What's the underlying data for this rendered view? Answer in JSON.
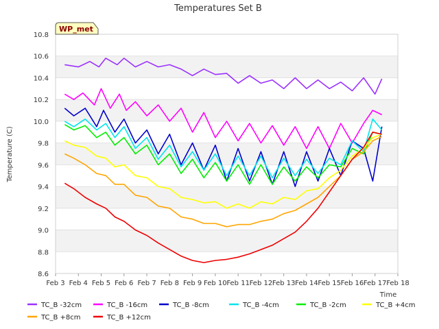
{
  "chart_data": {
    "type": "line",
    "title": "Temperatures Set B",
    "xlabel": "Time",
    "ylabel": "Temperature (C)",
    "xlim": [
      3,
      18
    ],
    "ylim": [
      8.6,
      10.8
    ],
    "x_ticks": [
      {
        "v": 3,
        "label": "Feb 3"
      },
      {
        "v": 4,
        "label": "Feb 4"
      },
      {
        "v": 5,
        "label": "Feb 5"
      },
      {
        "v": 6,
        "label": "Feb 6"
      },
      {
        "v": 7,
        "label": "Feb 7"
      },
      {
        "v": 8,
        "label": "Feb 8"
      },
      {
        "v": 9,
        "label": "Feb 9"
      },
      {
        "v": 10,
        "label": "Feb 10"
      },
      {
        "v": 11,
        "label": "Feb 11"
      },
      {
        "v": 12,
        "label": "Feb 12"
      },
      {
        "v": 13,
        "label": "Feb 13"
      },
      {
        "v": 14,
        "label": "Feb 14"
      },
      {
        "v": 15,
        "label": "Feb 15"
      },
      {
        "v": 16,
        "label": "Feb 16"
      },
      {
        "v": 17,
        "label": "Feb 17"
      },
      {
        "v": 18,
        "label": "Feb 18"
      }
    ],
    "y_ticks": [
      {
        "v": 8.6,
        "label": "8.6"
      },
      {
        "v": 8.8,
        "label": "8.8"
      },
      {
        "v": 9.0,
        "label": "9.0"
      },
      {
        "v": 9.2,
        "label": "9.2"
      },
      {
        "v": 9.4,
        "label": "9.4"
      },
      {
        "v": 9.6,
        "label": "9.6"
      },
      {
        "v": 9.8,
        "label": "9.8"
      },
      {
        "v": 10.0,
        "label": "10.0"
      },
      {
        "v": 10.2,
        "label": "10.2"
      },
      {
        "v": 10.4,
        "label": "10.4"
      },
      {
        "v": 10.6,
        "label": "10.6"
      },
      {
        "v": 10.8,
        "label": "10.8"
      }
    ],
    "grid_bands": true,
    "legend_position": "bottom",
    "annotation": "WP_met",
    "series": [
      {
        "name": "TC_B -32cm",
        "color": "#9b30ff",
        "x": [
          3.4,
          4.0,
          4.5,
          4.9,
          5.2,
          5.7,
          6.0,
          6.5,
          7.0,
          7.5,
          8.0,
          8.5,
          9.0,
          9.5,
          10.0,
          10.5,
          11.0,
          11.5,
          12.0,
          12.5,
          13.0,
          13.5,
          14.0,
          14.5,
          15.0,
          15.5,
          16.0,
          16.5,
          17.0,
          17.3
        ],
        "y": [
          10.52,
          10.5,
          10.55,
          10.5,
          10.58,
          10.52,
          10.58,
          10.5,
          10.55,
          10.5,
          10.52,
          10.48,
          10.42,
          10.48,
          10.43,
          10.44,
          10.35,
          10.42,
          10.35,
          10.38,
          10.3,
          10.4,
          10.3,
          10.38,
          10.3,
          10.36,
          10.28,
          10.4,
          10.25,
          10.39
        ]
      },
      {
        "name": "TC_B -16cm",
        "color": "#ff00ff",
        "x": [
          3.4,
          3.8,
          4.2,
          4.7,
          5.0,
          5.4,
          5.8,
          6.1,
          6.5,
          7.0,
          7.5,
          8.0,
          8.5,
          9.0,
          9.5,
          10.0,
          10.5,
          11.0,
          11.5,
          12.0,
          12.5,
          13.0,
          13.5,
          14.0,
          14.5,
          15.0,
          15.5,
          16.0,
          16.5,
          16.9,
          17.3
        ],
        "y": [
          10.25,
          10.2,
          10.26,
          10.15,
          10.3,
          10.12,
          10.25,
          10.1,
          10.18,
          10.05,
          10.15,
          10.0,
          10.12,
          9.9,
          10.08,
          9.85,
          10.0,
          9.82,
          9.98,
          9.8,
          9.96,
          9.78,
          9.95,
          9.75,
          9.95,
          9.75,
          9.98,
          9.8,
          9.98,
          10.1,
          10.06
        ]
      },
      {
        "name": "TC_B -8cm",
        "color": "#0000cd",
        "x": [
          3.4,
          3.8,
          4.3,
          4.8,
          5.1,
          5.6,
          6.0,
          6.5,
          7.0,
          7.5,
          8.0,
          8.5,
          9.0,
          9.5,
          10.0,
          10.5,
          11.0,
          11.5,
          12.0,
          12.5,
          13.0,
          13.5,
          14.0,
          14.5,
          15.0,
          15.5,
          16.0,
          16.5,
          16.9,
          17.3
        ],
        "y": [
          10.12,
          10.05,
          10.12,
          9.95,
          10.1,
          9.9,
          10.02,
          9.8,
          9.92,
          9.7,
          9.88,
          9.6,
          9.8,
          9.55,
          9.78,
          9.45,
          9.75,
          9.45,
          9.72,
          9.42,
          9.72,
          9.4,
          9.72,
          9.45,
          9.75,
          9.5,
          9.82,
          9.75,
          9.45,
          9.95
        ]
      },
      {
        "name": "TC_B -4cm",
        "color": "#00e5ee",
        "x": [
          3.4,
          3.8,
          4.3,
          4.8,
          5.2,
          5.6,
          6.0,
          6.5,
          7.0,
          7.5,
          8.0,
          8.5,
          9.0,
          9.5,
          10.0,
          10.5,
          11.0,
          11.5,
          12.0,
          12.5,
          13.0,
          13.5,
          14.0,
          14.5,
          15.0,
          15.5,
          16.0,
          16.5,
          16.9,
          17.3
        ],
        "y": [
          10.0,
          9.95,
          10.02,
          9.92,
          9.98,
          9.85,
          9.95,
          9.75,
          9.85,
          9.65,
          9.78,
          9.58,
          9.72,
          9.55,
          9.7,
          9.5,
          9.68,
          9.5,
          9.68,
          9.48,
          9.66,
          9.5,
          9.65,
          9.52,
          9.66,
          9.6,
          9.82,
          9.72,
          10.02,
          9.92
        ]
      },
      {
        "name": "TC_B -2cm",
        "color": "#00ee00",
        "x": [
          3.4,
          3.8,
          4.3,
          4.8,
          5.2,
          5.6,
          6.0,
          6.5,
          7.0,
          7.5,
          8.0,
          8.5,
          9.0,
          9.5,
          10.0,
          10.5,
          11.0,
          11.5,
          12.0,
          12.5,
          13.0,
          13.5,
          14.0,
          14.5,
          15.0,
          15.5,
          16.0,
          16.5,
          16.9,
          17.3
        ],
        "y": [
          9.97,
          9.92,
          9.96,
          9.85,
          9.9,
          9.78,
          9.85,
          9.7,
          9.78,
          9.6,
          9.7,
          9.52,
          9.65,
          9.48,
          9.62,
          9.45,
          9.6,
          9.42,
          9.6,
          9.42,
          9.58,
          9.45,
          9.58,
          9.48,
          9.6,
          9.58,
          9.75,
          9.7,
          9.9,
          9.88
        ]
      },
      {
        "name": "TC_B +4cm",
        "color": "#ffff00",
        "x": [
          3.4,
          3.8,
          4.3,
          4.8,
          5.2,
          5.6,
          6.0,
          6.5,
          7.0,
          7.5,
          8.0,
          8.5,
          9.0,
          9.5,
          10.0,
          10.5,
          11.0,
          11.5,
          12.0,
          12.5,
          13.0,
          13.5,
          14.0,
          14.5,
          15.0,
          15.5,
          16.0,
          16.5,
          16.9,
          17.3
        ],
        "y": [
          9.82,
          9.78,
          9.76,
          9.68,
          9.66,
          9.58,
          9.6,
          9.5,
          9.48,
          9.4,
          9.38,
          9.3,
          9.28,
          9.25,
          9.26,
          9.2,
          9.24,
          9.2,
          9.26,
          9.24,
          9.3,
          9.28,
          9.36,
          9.38,
          9.48,
          9.55,
          9.68,
          9.75,
          9.85,
          9.88
        ]
      },
      {
        "name": "TC_B +8cm",
        "color": "#ffa500",
        "x": [
          3.4,
          3.8,
          4.3,
          4.8,
          5.2,
          5.6,
          6.0,
          6.5,
          7.0,
          7.5,
          8.0,
          8.5,
          9.0,
          9.5,
          10.0,
          10.5,
          11.0,
          11.5,
          12.0,
          12.5,
          13.0,
          13.5,
          14.0,
          14.5,
          15.0,
          15.5,
          16.0,
          16.5,
          16.9,
          17.3
        ],
        "y": [
          9.7,
          9.66,
          9.6,
          9.52,
          9.5,
          9.42,
          9.42,
          9.32,
          9.3,
          9.22,
          9.2,
          9.12,
          9.1,
          9.06,
          9.06,
          9.03,
          9.05,
          9.05,
          9.08,
          9.1,
          9.15,
          9.18,
          9.24,
          9.3,
          9.4,
          9.5,
          9.65,
          9.72,
          9.82,
          9.86
        ]
      },
      {
        "name": "TC_B +12cm",
        "color": "#ee0000",
        "x": [
          3.4,
          3.8,
          4.3,
          4.8,
          5.2,
          5.6,
          6.0,
          6.5,
          7.0,
          7.5,
          8.0,
          8.5,
          9.0,
          9.5,
          10.0,
          10.5,
          11.0,
          11.5,
          12.0,
          12.5,
          13.0,
          13.5,
          14.0,
          14.5,
          15.0,
          15.5,
          16.0,
          16.5,
          16.9,
          17.3
        ],
        "y": [
          9.43,
          9.38,
          9.3,
          9.24,
          9.2,
          9.12,
          9.08,
          9.0,
          8.95,
          8.88,
          8.82,
          8.76,
          8.72,
          8.7,
          8.72,
          8.73,
          8.75,
          8.78,
          8.82,
          8.86,
          8.92,
          8.98,
          9.08,
          9.2,
          9.35,
          9.5,
          9.65,
          9.76,
          9.9,
          9.88
        ]
      }
    ]
  }
}
